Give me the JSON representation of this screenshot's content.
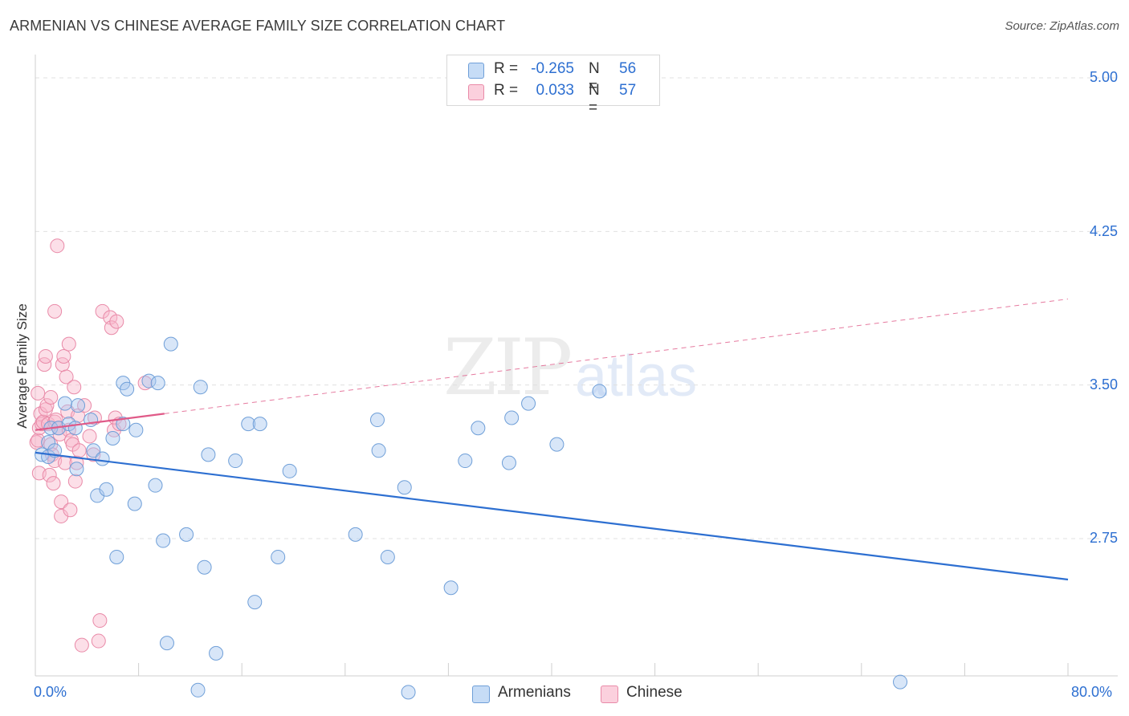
{
  "header": {
    "title": "ARMENIAN VS CHINESE AVERAGE FAMILY SIZE CORRELATION CHART",
    "source": "Source: ZipAtlas.com"
  },
  "watermark": {
    "zip": "ZIP",
    "atlas": "atlas"
  },
  "legend": {
    "rows": [
      {
        "r_label": "R =",
        "r_value": "-0.265",
        "n_label": "N =",
        "n_value": "56",
        "color": "#a8c8f0"
      },
      {
        "r_label": "R =",
        "r_value": "0.033",
        "n_label": "N =",
        "n_value": "57",
        "color": "#f8b8cc"
      }
    ]
  },
  "bottom_legend": {
    "armenians": "Armenians",
    "chinese": "Chinese"
  },
  "colors": {
    "armenian_fill": "#a8c8f0",
    "armenian_stroke": "#6f9fd8",
    "armenian_line": "#2d6fd1",
    "chinese_fill": "#f8b8cc",
    "chinese_stroke": "#e98aa8",
    "chinese_line": "#e05a88",
    "tick_text": "#2d6fd1",
    "grid": "#e0e0e0"
  },
  "chart_data": {
    "type": "scatter",
    "title": "ARMENIAN VS CHINESE AVERAGE FAMILY SIZE CORRELATION CHART",
    "xlabel": "",
    "ylabel": "Average Family Size",
    "xlim": [
      0,
      80
    ],
    "ylim": [
      2.0,
      5.2
    ],
    "x_tick_labels": [
      "0.0%",
      "80.0%"
    ],
    "y_ticks": [
      2.75,
      3.5,
      4.25,
      5.0
    ],
    "y_tick_labels": [
      "2.75",
      "3.50",
      "4.25",
      "5.00"
    ],
    "series": [
      {
        "name": "Armenians",
        "R": -0.265,
        "N": 56,
        "trend": {
          "x0": 0,
          "y0": 3.17,
          "x1": 80,
          "y1": 2.55,
          "dashed_from": null
        },
        "points": [
          [
            0.5,
            3.16
          ],
          [
            1.0,
            3.15
          ],
          [
            1.0,
            3.22
          ],
          [
            1.2,
            3.29
          ],
          [
            1.5,
            3.18
          ],
          [
            1.8,
            3.29
          ],
          [
            2.3,
            3.41
          ],
          [
            2.6,
            3.31
          ],
          [
            3.1,
            3.29
          ],
          [
            3.3,
            3.4
          ],
          [
            3.2,
            3.09
          ],
          [
            4.3,
            3.33
          ],
          [
            4.5,
            3.18
          ],
          [
            4.8,
            2.96
          ],
          [
            5.2,
            3.14
          ],
          [
            5.5,
            2.99
          ],
          [
            6.0,
            3.24
          ],
          [
            6.3,
            2.66
          ],
          [
            6.8,
            3.31
          ],
          [
            6.8,
            3.51
          ],
          [
            7.1,
            3.48
          ],
          [
            7.7,
            2.92
          ],
          [
            7.8,
            3.28
          ],
          [
            8.8,
            3.52
          ],
          [
            9.3,
            3.01
          ],
          [
            9.5,
            3.51
          ],
          [
            9.9,
            2.74
          ],
          [
            10.2,
            2.24
          ],
          [
            10.5,
            3.7
          ],
          [
            11.7,
            2.77
          ],
          [
            12.6,
            2.01
          ],
          [
            12.8,
            3.49
          ],
          [
            13.1,
            2.61
          ],
          [
            13.4,
            3.16
          ],
          [
            14.0,
            2.19
          ],
          [
            15.5,
            3.13
          ],
          [
            16.5,
            3.31
          ],
          [
            17.0,
            2.44
          ],
          [
            17.4,
            3.31
          ],
          [
            18.8,
            2.66
          ],
          [
            19.7,
            3.08
          ],
          [
            24.8,
            2.77
          ],
          [
            26.5,
            3.33
          ],
          [
            26.6,
            3.18
          ],
          [
            27.3,
            2.66
          ],
          [
            28.6,
            3.0
          ],
          [
            28.9,
            2.0
          ],
          [
            32.2,
            2.51
          ],
          [
            33.3,
            3.13
          ],
          [
            34.3,
            3.29
          ],
          [
            36.7,
            3.12
          ],
          [
            36.9,
            3.34
          ],
          [
            38.2,
            3.41
          ],
          [
            40.4,
            3.21
          ],
          [
            43.7,
            3.47
          ],
          [
            67.0,
            2.05
          ]
        ]
      },
      {
        "name": "Chinese",
        "R": 0.033,
        "N": 57,
        "trend": {
          "x0": 0,
          "y0": 3.28,
          "x1": 80,
          "y1": 3.92,
          "solid_until": 10
        },
        "points": [
          [
            0.1,
            3.22
          ],
          [
            0.2,
            3.46
          ],
          [
            0.2,
            3.23
          ],
          [
            0.3,
            3.29
          ],
          [
            0.3,
            3.07
          ],
          [
            0.4,
            3.36
          ],
          [
            0.5,
            3.31
          ],
          [
            0.6,
            3.32
          ],
          [
            0.7,
            3.6
          ],
          [
            0.8,
            3.38
          ],
          [
            0.8,
            3.64
          ],
          [
            0.9,
            3.4
          ],
          [
            1.0,
            3.31
          ],
          [
            1.1,
            3.06
          ],
          [
            1.2,
            3.21
          ],
          [
            1.2,
            3.44
          ],
          [
            1.3,
            3.16
          ],
          [
            1.4,
            3.02
          ],
          [
            1.5,
            3.32
          ],
          [
            1.5,
            3.86
          ],
          [
            1.5,
            3.13
          ],
          [
            1.6,
            3.33
          ],
          [
            1.7,
            4.18
          ],
          [
            1.8,
            3.29
          ],
          [
            1.9,
            3.26
          ],
          [
            2.0,
            2.86
          ],
          [
            2.0,
            2.93
          ],
          [
            2.1,
            3.6
          ],
          [
            2.2,
            3.64
          ],
          [
            2.3,
            3.12
          ],
          [
            2.4,
            3.54
          ],
          [
            2.5,
            3.37
          ],
          [
            2.6,
            3.7
          ],
          [
            2.6,
            3.28
          ],
          [
            2.7,
            2.89
          ],
          [
            2.8,
            3.23
          ],
          [
            2.9,
            3.21
          ],
          [
            3.0,
            3.49
          ],
          [
            3.1,
            3.03
          ],
          [
            3.2,
            3.12
          ],
          [
            3.3,
            3.35
          ],
          [
            3.4,
            3.18
          ],
          [
            3.6,
            2.23
          ],
          [
            3.8,
            3.4
          ],
          [
            4.2,
            3.25
          ],
          [
            4.5,
            3.16
          ],
          [
            4.6,
            3.34
          ],
          [
            4.9,
            2.25
          ],
          [
            5.0,
            2.35
          ],
          [
            5.2,
            3.86
          ],
          [
            5.8,
            3.83
          ],
          [
            5.9,
            3.78
          ],
          [
            6.1,
            3.28
          ],
          [
            6.2,
            3.34
          ],
          [
            6.5,
            3.31
          ],
          [
            6.3,
            3.81
          ],
          [
            8.5,
            3.51
          ]
        ]
      }
    ]
  }
}
